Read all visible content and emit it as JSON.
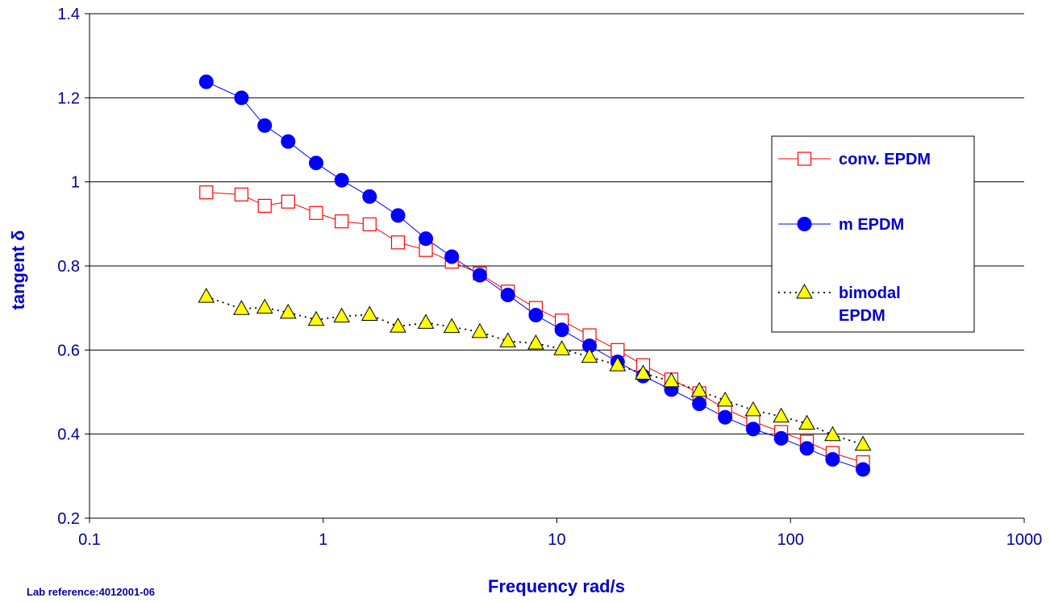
{
  "chart_data": {
    "type": "scatter",
    "title": "",
    "xlabel": "Frequency  rad/s",
    "ylabel": "tangent δ",
    "x_scale": "log",
    "xlim": [
      0.1,
      1000
    ],
    "ylim": [
      0.2,
      1.4
    ],
    "x_ticks": [
      "0.1",
      "1",
      "10",
      "100",
      "1000"
    ],
    "y_ticks": [
      "0.2",
      "0.4",
      "0.6",
      "0.8",
      "1",
      "1.2",
      "1.4"
    ],
    "grid": "horizontal",
    "legend_position": "right",
    "series": [
      {
        "name": "conv. EPDM",
        "marker": "open-square",
        "line": "solid",
        "color": "#ff0000",
        "x": [
          0.316,
          0.447,
          0.562,
          0.708,
          0.933,
          1.2,
          1.58,
          2.09,
          2.75,
          3.55,
          4.68,
          6.17,
          8.13,
          10.5,
          13.8,
          18.2,
          23.4,
          30.9,
          40.7,
          52.5,
          69.2,
          91.2,
          117.5,
          151.4,
          204.2
        ],
        "y": [
          0.975,
          0.97,
          0.943,
          0.953,
          0.926,
          0.906,
          0.899,
          0.856,
          0.838,
          0.81,
          0.782,
          0.739,
          0.7,
          0.67,
          0.635,
          0.6,
          0.564,
          0.53,
          0.497,
          0.46,
          0.43,
          0.405,
          0.382,
          0.355,
          0.333
        ]
      },
      {
        "name": "m EPDM",
        "marker": "filled-circle",
        "line": "solid",
        "color": "#0000ff",
        "x": [
          0.316,
          0.447,
          0.562,
          0.708,
          0.933,
          1.2,
          1.58,
          2.09,
          2.75,
          3.55,
          4.68,
          6.17,
          8.13,
          10.5,
          13.8,
          18.2,
          23.4,
          30.9,
          40.7,
          52.5,
          69.2,
          91.2,
          117.5,
          151.4,
          204.2
        ],
        "y": [
          1.238,
          1.2,
          1.134,
          1.096,
          1.045,
          1.004,
          0.965,
          0.92,
          0.865,
          0.822,
          0.778,
          0.731,
          0.683,
          0.648,
          0.61,
          0.572,
          0.538,
          0.506,
          0.472,
          0.44,
          0.412,
          0.39,
          0.366,
          0.34,
          0.316
        ]
      },
      {
        "name": "bimodal EPDM",
        "marker": "filled-triangle",
        "line": "dotted",
        "color": "#ffff00",
        "x": [
          0.316,
          0.447,
          0.562,
          0.708,
          0.933,
          1.2,
          1.58,
          2.09,
          2.75,
          3.55,
          4.68,
          6.17,
          8.13,
          10.5,
          13.8,
          18.2,
          23.4,
          30.9,
          40.7,
          52.5,
          69.2,
          91.2,
          117.5,
          151.4,
          204.2
        ],
        "y": [
          0.727,
          0.698,
          0.701,
          0.689,
          0.672,
          0.68,
          0.684,
          0.656,
          0.665,
          0.655,
          0.643,
          0.621,
          0.616,
          0.602,
          0.584,
          0.564,
          0.544,
          0.526,
          0.503,
          0.48,
          0.457,
          0.442,
          0.425,
          0.398,
          0.375
        ]
      }
    ]
  },
  "legend_lines": {
    "bimodal": [
      "bimodal",
      "EPDM"
    ]
  },
  "note": "Lab reference:4012001-06"
}
